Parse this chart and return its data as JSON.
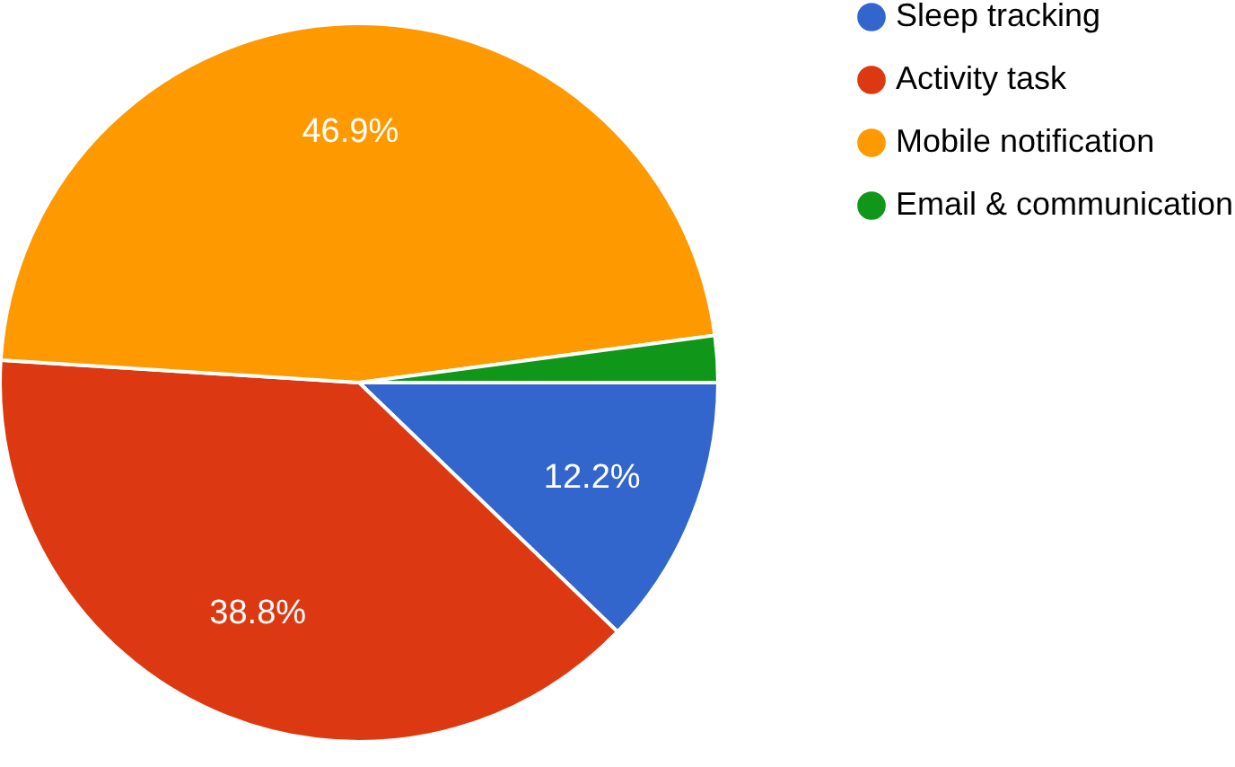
{
  "chart_data": {
    "type": "pie",
    "categories": [
      "Sleep tracking",
      "Activity task",
      "Mobile notification",
      "Email & communication"
    ],
    "values": [
      12.2,
      38.8,
      46.9,
      2.1
    ],
    "colors": [
      "#3366cc",
      "#dc3912",
      "#ff9900",
      "#109618"
    ],
    "value_labels": [
      "12.2%",
      "38.8%",
      "46.9%",
      null
    ],
    "legend": "top right"
  }
}
